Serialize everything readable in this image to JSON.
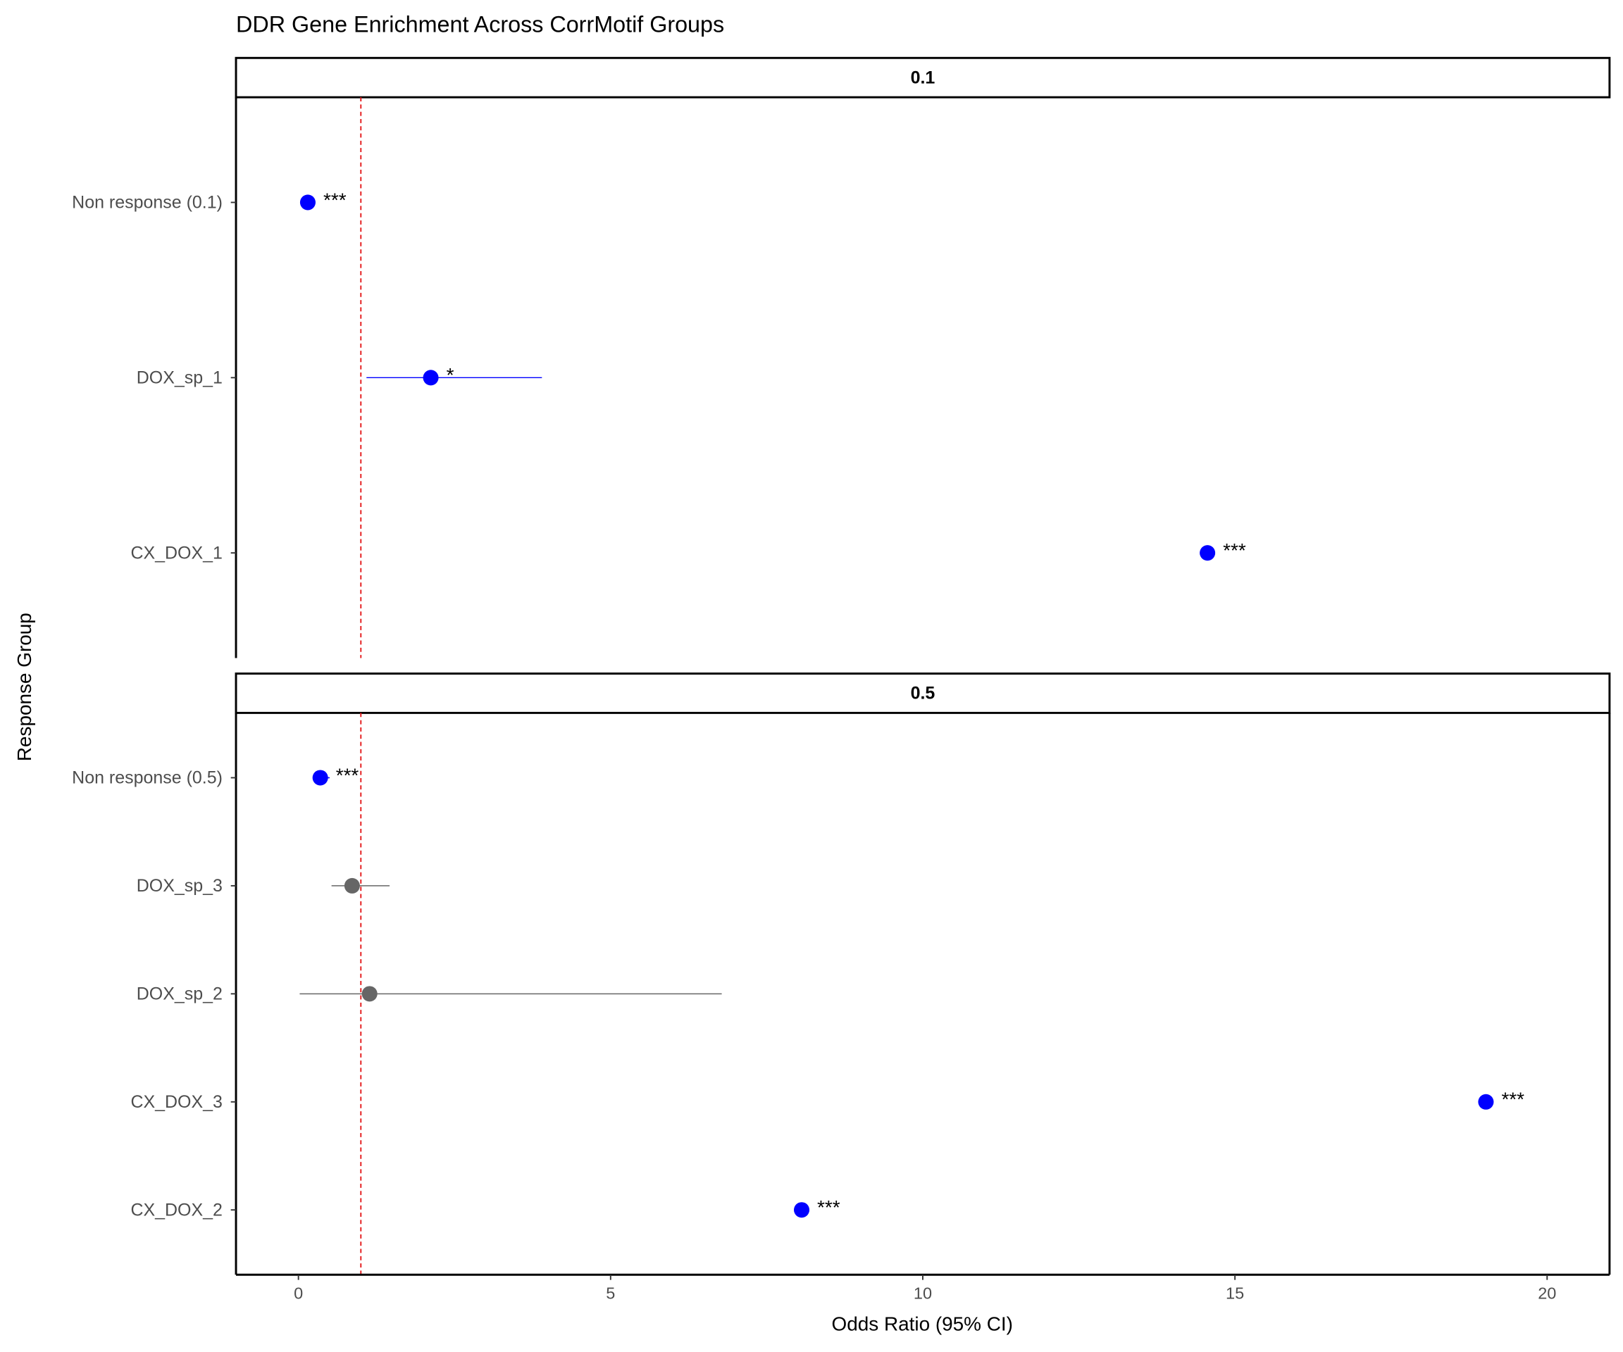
{
  "chart_data": [
    {
      "type": "forest",
      "title": "DDR Gene Enrichment Across CorrMotif Groups",
      "y_label": "Response Group",
      "facet": "0.1",
      "categories": [
        "Non response (0.1)",
        "DOX_sp_1",
        "CX_DOX_1"
      ],
      "values": [
        0.15,
        2.12,
        14.56
      ],
      "ci_low": [
        null,
        1.09,
        null
      ],
      "ci_high": [
        null,
        3.9,
        null
      ],
      "colors": [
        "#0000FF",
        "#0000FF",
        "#0000FF"
      ],
      "sig_labels": [
        "***",
        "*",
        "***"
      ],
      "xlim": [
        -1,
        21
      ],
      "ref_line": 1,
      "ref_color": "#E41A1C"
    },
    {
      "type": "forest",
      "x_label": "Odds Ratio (95% CI)",
      "facet": "0.5",
      "categories": [
        "Non response (0.5)",
        "DOX_sp_3",
        "DOX_sp_2",
        "CX_DOX_3",
        "CX_DOX_2"
      ],
      "values": [
        0.35,
        0.86,
        1.14,
        19.02,
        8.06
      ],
      "ci_low": [
        0.3,
        0.53,
        0.02,
        null,
        null
      ],
      "ci_high": [
        0.5,
        1.46,
        6.78,
        null,
        null
      ],
      "colors": [
        "#0000FF",
        "#666666",
        "#666666",
        "#0000FF",
        "#0000FF"
      ],
      "sig_labels": [
        "***",
        null,
        null,
        "***",
        "***"
      ],
      "xlim": [
        -1,
        21
      ],
      "xticks": [
        0,
        5,
        10,
        15,
        20
      ],
      "ref_line": 1,
      "ref_color": "#E41A1C"
    }
  ]
}
